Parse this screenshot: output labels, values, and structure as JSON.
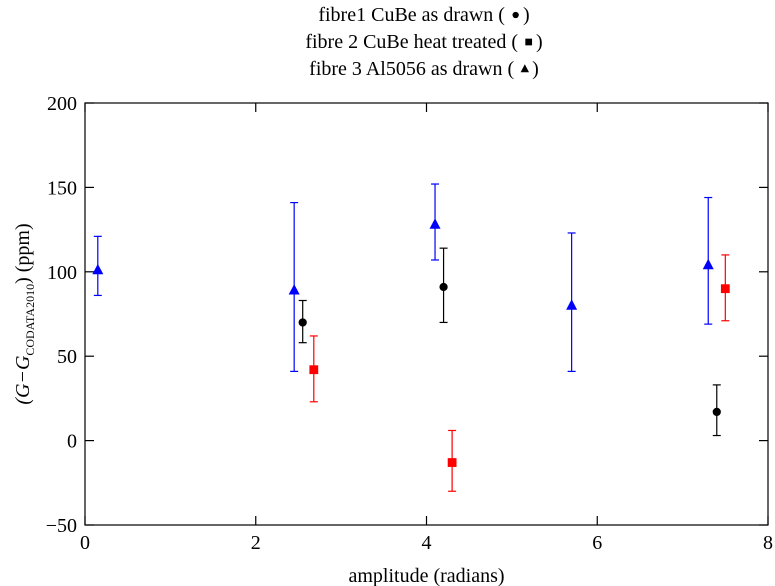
{
  "chart_data": {
    "type": "scatter",
    "title_lines": [
      {
        "text": "fibre1 CuBe as drawn (",
        "marker": "circle",
        "close": ")"
      },
      {
        "text": "fibre 2 CuBe heat treated (",
        "marker": "square",
        "close": ")"
      },
      {
        "text": "fibre 3 Al5056 as drawn (",
        "marker": "triangle",
        "close": ")"
      }
    ],
    "xlabel": "amplitude (radians)",
    "ylabel": {
      "main": "(G−G",
      "sub": "CODATA2010",
      "tail": ") (ppm)"
    },
    "xlim": [
      0,
      8
    ],
    "ylim": [
      -50,
      200
    ],
    "xticks": [
      0,
      2,
      4,
      6,
      8
    ],
    "yticks": [
      -50,
      0,
      50,
      100,
      150,
      200
    ],
    "grid": false,
    "series": [
      {
        "marker": "circle",
        "color": "#000000",
        "points": [
          {
            "x": 2.55,
            "y": 70,
            "lo": 58,
            "hi": 83
          },
          {
            "x": 4.2,
            "y": 91,
            "lo": 70,
            "hi": 114
          },
          {
            "x": 7.4,
            "y": 17,
            "lo": 3,
            "hi": 33
          }
        ]
      },
      {
        "marker": "square",
        "color": "#ff0000",
        "points": [
          {
            "x": 2.68,
            "y": 42,
            "lo": 23,
            "hi": 62
          },
          {
            "x": 4.3,
            "y": -13,
            "lo": -30,
            "hi": 6
          },
          {
            "x": 7.5,
            "y": 90,
            "lo": 71,
            "hi": 110
          }
        ]
      },
      {
        "marker": "triangle",
        "color": "#0000ff",
        "points": [
          {
            "x": 0.15,
            "y": 101,
            "lo": 86,
            "hi": 121
          },
          {
            "x": 2.45,
            "y": 89,
            "lo": 41,
            "hi": 141
          },
          {
            "x": 4.1,
            "y": 128,
            "lo": 107,
            "hi": 152
          },
          {
            "x": 5.7,
            "y": 80,
            "lo": 41,
            "hi": 123
          },
          {
            "x": 7.3,
            "y": 104,
            "lo": 69,
            "hi": 144
          }
        ]
      }
    ]
  }
}
